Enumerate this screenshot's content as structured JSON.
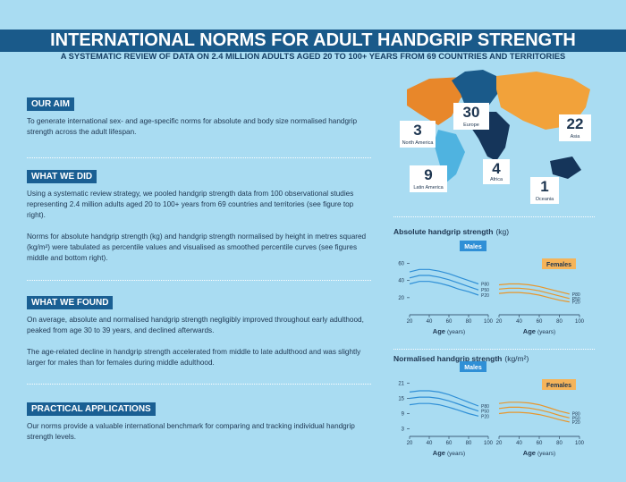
{
  "header": {
    "title": "INTERNATIONAL NORMS FOR ADULT HANDGRIP STRENGTH",
    "subtitle": "A SYSTEMATIC REVIEW OF DATA ON 2.4 MILLION ADULTS AGED 20 TO 100+ YEARS FROM 69 COUNTRIES AND TERRITORIES"
  },
  "sections": [
    {
      "heading": "OUR AIM",
      "paragraphs": [
        "To generate international sex- and age-specific norms for absolute and body size normalised handgrip strength across the adult lifespan."
      ]
    },
    {
      "heading": "WHAT WE DID",
      "paragraphs": [
        "Using a systematic review strategy, we pooled handgrip strength data from 100 observational studies representing 2.4 million adults aged 20 to 100+ years from 69 countries and territories (see figure top right).",
        "Norms for absolute handgrip strength (kg) and handgrip strength normalised by height in metres squared (kg/m²) were tabulated as percentile values and visualised as smoothed percentile curves (see figures middle and bottom right)."
      ]
    },
    {
      "heading": "WHAT WE FOUND",
      "paragraphs": [
        "On average, absolute and normalised handgrip strength negligibly improved throughout early adulthood, peaked from age 30 to 39 years, and declined afterwards.",
        "The age-related decline in handgrip strength accelerated from middle to late adulthood and was slightly larger for males than for females during middle adulthood."
      ]
    },
    {
      "heading": "PRACTICAL APPLICATIONS",
      "paragraphs": [
        "Our norms provide a valuable international benchmark for comparing and tracking individual handgrip strength levels."
      ]
    }
  ],
  "map": {
    "regions": [
      {
        "count": 3,
        "name": "North America"
      },
      {
        "count": 30,
        "name": "Europe"
      },
      {
        "count": 22,
        "name": "Asia"
      },
      {
        "count": 9,
        "name": "Latin America"
      },
      {
        "count": 4,
        "name": "Africa"
      },
      {
        "count": 1,
        "name": "Oceania"
      }
    ]
  },
  "charts": [
    {
      "title": "Absolute handgrip strength",
      "unit": "(kg)",
      "x_label": "Age",
      "x_unit": "(years)",
      "xlim": [
        20,
        100
      ],
      "xticks": [
        20,
        40,
        60,
        80,
        100
      ],
      "ylim": [
        0,
        70
      ],
      "yticks": [
        20,
        40,
        60
      ],
      "x": [
        20,
        30,
        40,
        50,
        60,
        70,
        80,
        90
      ],
      "panels": [
        {
          "name": "Males",
          "color": "#2f8fd6",
          "series": [
            {
              "name": "P80",
              "values": [
                50,
                53,
                53,
                51,
                48,
                44,
                40,
                36
              ]
            },
            {
              "name": "P50",
              "values": [
                43,
                46,
                46,
                44,
                41,
                37,
                33,
                29
              ]
            },
            {
              "name": "P20",
              "values": [
                36,
                39,
                39,
                37,
                34,
                30,
                27,
                23
              ]
            }
          ]
        },
        {
          "name": "Females",
          "color": "#e8962c",
          "series": [
            {
              "name": "P80",
              "values": [
                35,
                36,
                36,
                35,
                33,
                30,
                27,
                24
              ]
            },
            {
              "name": "P50",
              "values": [
                30,
                31,
                31,
                30,
                28,
                25,
                22,
                19
              ]
            },
            {
              "name": "P20",
              "values": [
                25,
                26,
                26,
                25,
                23,
                20,
                17,
                15
              ]
            }
          ]
        }
      ]
    },
    {
      "title": "Normalised handgrip strength",
      "unit": "(kg/m²)",
      "x_label": "Age",
      "x_unit": "(years)",
      "xlim": [
        20,
        100
      ],
      "xticks": [
        20,
        40,
        60,
        80,
        100
      ],
      "ylim": [
        0,
        24
      ],
      "yticks": [
        3,
        9,
        15,
        21
      ],
      "x": [
        20,
        30,
        40,
        50,
        60,
        70,
        80,
        90
      ],
      "panels": [
        {
          "name": "Males",
          "color": "#2f8fd6",
          "series": [
            {
              "name": "P80",
              "values": [
                17.5,
                18,
                18,
                17.5,
                16.5,
                15,
                13.5,
                12
              ]
            },
            {
              "name": "P50",
              "values": [
                15,
                15.5,
                15.5,
                15,
                14,
                12.7,
                11.3,
                10
              ]
            },
            {
              "name": "P20",
              "values": [
                12.5,
                13,
                13,
                12.5,
                11.5,
                10.3,
                9,
                8
              ]
            }
          ]
        },
        {
          "name": "Females",
          "color": "#e8962c",
          "series": [
            {
              "name": "P80",
              "values": [
                13,
                13.5,
                13.5,
                13.2,
                12.5,
                11.3,
                10,
                9
              ]
            },
            {
              "name": "P50",
              "values": [
                11,
                11.5,
                11.5,
                11.2,
                10.5,
                9.5,
                8.3,
                7.3
              ]
            },
            {
              "name": "P20",
              "values": [
                9,
                9.5,
                9.5,
                9.2,
                8.6,
                7.7,
                6.6,
                5.7
              ]
            }
          ]
        }
      ]
    }
  ]
}
